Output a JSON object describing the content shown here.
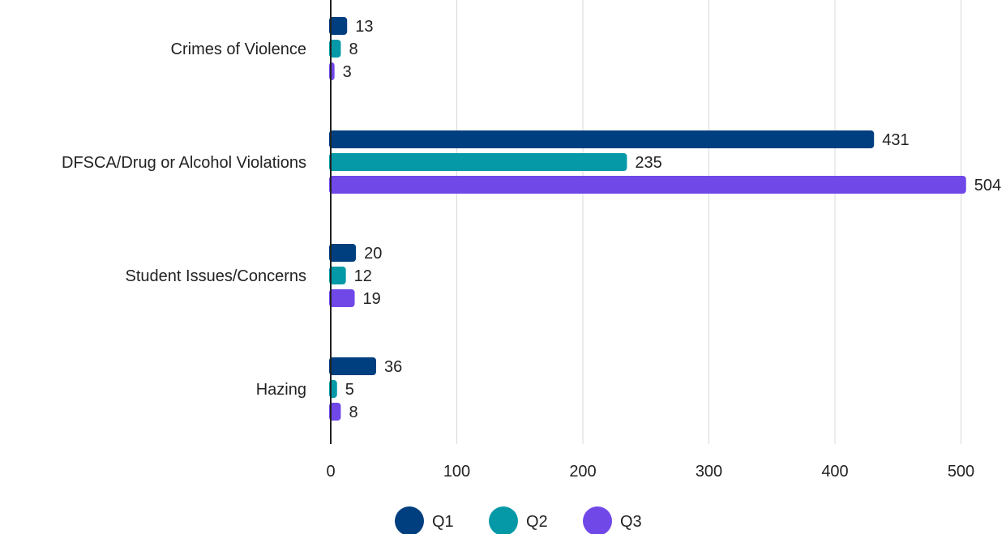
{
  "chart_data": {
    "type": "bar",
    "orientation": "horizontal",
    "categories": [
      "Crimes of Violence",
      "DFSCA/Drug or Alcohol Violations",
      "Student Issues/Concerns",
      "Hazing"
    ],
    "series": [
      {
        "name": "Q1",
        "values": [
          13,
          431,
          20,
          36
        ],
        "color": "#003f7f"
      },
      {
        "name": "Q2",
        "values": [
          8,
          235,
          12,
          5
        ],
        "color": "#0599a8"
      },
      {
        "name": "Q3",
        "values": [
          3,
          504,
          19,
          8
        ],
        "color": "#7048e8"
      }
    ],
    "xlim": [
      0,
      500
    ],
    "xticks": [
      0,
      100,
      200,
      300,
      400,
      500
    ],
    "grid": true,
    "legend": "bottom-center",
    "title": "",
    "xlabel": "",
    "ylabel": ""
  }
}
